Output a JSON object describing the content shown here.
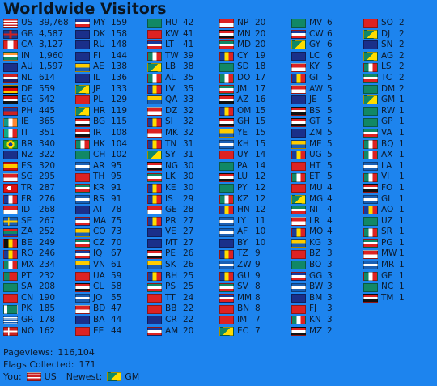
{
  "widget": {
    "title": "Worldwide Visitors",
    "pageviews_label": "Pageviews:",
    "pageviews_value": "116,104",
    "flags_label": "Flags Collected:",
    "flags_value": "171",
    "you_label": "You:",
    "you_code": "US",
    "newest_label": "Newest:",
    "newest_code": "GM"
  },
  "colors": {
    "background": "#1d84ee",
    "text": "#0d1a2b"
  },
  "columns": [
    [
      {
        "code": "US",
        "count": "39,768"
      },
      {
        "code": "GB",
        "count": "4,587"
      },
      {
        "code": "CA",
        "count": "3,127"
      },
      {
        "code": "IN",
        "count": "1,960"
      },
      {
        "code": "AU",
        "count": "1,597"
      },
      {
        "code": "NL",
        "count": "614"
      },
      {
        "code": "DE",
        "count": "559"
      },
      {
        "code": "EG",
        "count": "542"
      },
      {
        "code": "PH",
        "count": "445"
      },
      {
        "code": "IE",
        "count": "365"
      },
      {
        "code": "IT",
        "count": "351"
      },
      {
        "code": "BR",
        "count": "340"
      },
      {
        "code": "NZ",
        "count": "322"
      },
      {
        "code": "ES",
        "count": "320"
      },
      {
        "code": "SG",
        "count": "295"
      },
      {
        "code": "TR",
        "count": "287"
      },
      {
        "code": "FR",
        "count": "276"
      },
      {
        "code": "ID",
        "count": "268"
      },
      {
        "code": "SE",
        "count": "267"
      },
      {
        "code": "ZA",
        "count": "252"
      },
      {
        "code": "BE",
        "count": "249"
      },
      {
        "code": "RO",
        "count": "246"
      },
      {
        "code": "MX",
        "count": "234"
      },
      {
        "code": "PT",
        "count": "232"
      },
      {
        "code": "SA",
        "count": "208"
      },
      {
        "code": "CN",
        "count": "190"
      },
      {
        "code": "PK",
        "count": "185"
      },
      {
        "code": "GR",
        "count": "178"
      },
      {
        "code": "NO",
        "count": "162"
      }
    ],
    [
      {
        "code": "MY",
        "count": "159"
      },
      {
        "code": "DK",
        "count": "158"
      },
      {
        "code": "RU",
        "count": "148"
      },
      {
        "code": "FI",
        "count": "144"
      },
      {
        "code": "AE",
        "count": "138"
      },
      {
        "code": "IL",
        "count": "136"
      },
      {
        "code": "JP",
        "count": "133"
      },
      {
        "code": "PL",
        "count": "129"
      },
      {
        "code": "HR",
        "count": "119"
      },
      {
        "code": "BG",
        "count": "115"
      },
      {
        "code": "IR",
        "count": "108"
      },
      {
        "code": "HK",
        "count": "104"
      },
      {
        "code": "CH",
        "count": "102"
      },
      {
        "code": "AR",
        "count": "95"
      },
      {
        "code": "TH",
        "count": "95"
      },
      {
        "code": "KR",
        "count": "91"
      },
      {
        "code": "RS",
        "count": "91"
      },
      {
        "code": "AT",
        "count": "78"
      },
      {
        "code": "MA",
        "count": "75"
      },
      {
        "code": "CO",
        "count": "73"
      },
      {
        "code": "CZ",
        "count": "70"
      },
      {
        "code": "IQ",
        "count": "67"
      },
      {
        "code": "VN",
        "count": "61"
      },
      {
        "code": "UA",
        "count": "59"
      },
      {
        "code": "CL",
        "count": "58"
      },
      {
        "code": "JO",
        "count": "55"
      },
      {
        "code": "BD",
        "count": "47"
      },
      {
        "code": "BA",
        "count": "44"
      },
      {
        "code": "EE",
        "count": "44"
      }
    ],
    [
      {
        "code": "HU",
        "count": "42"
      },
      {
        "code": "KW",
        "count": "41"
      },
      {
        "code": "LT",
        "count": "41"
      },
      {
        "code": "TW",
        "count": "39"
      },
      {
        "code": "LB",
        "count": "38"
      },
      {
        "code": "AL",
        "count": "35"
      },
      {
        "code": "LV",
        "count": "35"
      },
      {
        "code": "QA",
        "count": "33"
      },
      {
        "code": "DZ",
        "count": "32"
      },
      {
        "code": "SI",
        "count": "32"
      },
      {
        "code": "MK",
        "count": "32"
      },
      {
        "code": "TN",
        "count": "31"
      },
      {
        "code": "SY",
        "count": "31"
      },
      {
        "code": "NG",
        "count": "30"
      },
      {
        "code": "LK",
        "count": "30"
      },
      {
        "code": "KE",
        "count": "30"
      },
      {
        "code": "IS",
        "count": "29"
      },
      {
        "code": "GE",
        "count": "28"
      },
      {
        "code": "PR",
        "count": "27"
      },
      {
        "code": "VE",
        "count": "27"
      },
      {
        "code": "MT",
        "count": "27"
      },
      {
        "code": "PE",
        "count": "26"
      },
      {
        "code": "SK",
        "count": "26"
      },
      {
        "code": "BH",
        "count": "25"
      },
      {
        "code": "PS",
        "count": "25"
      },
      {
        "code": "TT",
        "count": "24"
      },
      {
        "code": "BB",
        "count": "22"
      },
      {
        "code": "CR",
        "count": "22"
      },
      {
        "code": "AM",
        "count": "20"
      }
    ],
    [
      {
        "code": "NP",
        "count": "20"
      },
      {
        "code": "MN",
        "count": "20"
      },
      {
        "code": "MD",
        "count": "20"
      },
      {
        "code": "CY",
        "count": "19"
      },
      {
        "code": "SD",
        "count": "18"
      },
      {
        "code": "DO",
        "count": "17"
      },
      {
        "code": "JM",
        "count": "17"
      },
      {
        "code": "AZ",
        "count": "16"
      },
      {
        "code": "OM",
        "count": "15"
      },
      {
        "code": "GH",
        "count": "15"
      },
      {
        "code": "YE",
        "count": "15"
      },
      {
        "code": "KH",
        "count": "15"
      },
      {
        "code": "UY",
        "count": "14"
      },
      {
        "code": "PA",
        "count": "14"
      },
      {
        "code": "LU",
        "count": "12"
      },
      {
        "code": "PY",
        "count": "12"
      },
      {
        "code": "KZ",
        "count": "12"
      },
      {
        "code": "HN",
        "count": "12"
      },
      {
        "code": "LY",
        "count": "11"
      },
      {
        "code": "AF",
        "count": "10"
      },
      {
        "code": "BY",
        "count": "10"
      },
      {
        "code": "TZ",
        "count": "9"
      },
      {
        "code": "ZW",
        "count": "9"
      },
      {
        "code": "GU",
        "count": "9"
      },
      {
        "code": "SV",
        "count": "8"
      },
      {
        "code": "MM",
        "count": "8"
      },
      {
        "code": "BN",
        "count": "8"
      },
      {
        "code": "IM",
        "count": "7"
      },
      {
        "code": "EC",
        "count": "7"
      }
    ],
    [
      {
        "code": "MV",
        "count": "6"
      },
      {
        "code": "CW",
        "count": "6"
      },
      {
        "code": "GY",
        "count": "6"
      },
      {
        "code": "LC",
        "count": "6"
      },
      {
        "code": "KY",
        "count": "5"
      },
      {
        "code": "GI",
        "count": "5"
      },
      {
        "code": "AW",
        "count": "5"
      },
      {
        "code": "JE",
        "count": "5"
      },
      {
        "code": "BS",
        "count": "5"
      },
      {
        "code": "GT",
        "count": "5"
      },
      {
        "code": "ZM",
        "count": "5"
      },
      {
        "code": "ME",
        "count": "5"
      },
      {
        "code": "UG",
        "count": "5"
      },
      {
        "code": "HT",
        "count": "5"
      },
      {
        "code": "ET",
        "count": "5"
      },
      {
        "code": "MU",
        "count": "4"
      },
      {
        "code": "MG",
        "count": "4"
      },
      {
        "code": "NI",
        "count": "4"
      },
      {
        "code": "LR",
        "count": "4"
      },
      {
        "code": "MO",
        "count": "4"
      },
      {
        "code": "KG",
        "count": "3"
      },
      {
        "code": "BZ",
        "count": "3"
      },
      {
        "code": "BO",
        "count": "3"
      },
      {
        "code": "GG",
        "count": "3"
      },
      {
        "code": "BW",
        "count": "3"
      },
      {
        "code": "BM",
        "count": "3"
      },
      {
        "code": "FJ",
        "count": "3"
      },
      {
        "code": "KN",
        "count": "3"
      },
      {
        "code": "MZ",
        "count": "2"
      }
    ],
    [
      {
        "code": "SO",
        "count": "2"
      },
      {
        "code": "DJ",
        "count": "2"
      },
      {
        "code": "SN",
        "count": "2"
      },
      {
        "code": "AG",
        "count": "2"
      },
      {
        "code": "LS",
        "count": "2"
      },
      {
        "code": "TC",
        "count": "2"
      },
      {
        "code": "DM",
        "count": "2"
      },
      {
        "code": "GM",
        "count": "1"
      },
      {
        "code": "RW",
        "count": "1"
      },
      {
        "code": "GP",
        "count": "1"
      },
      {
        "code": "VA",
        "count": "1"
      },
      {
        "code": "BQ",
        "count": "1"
      },
      {
        "code": "AX",
        "count": "1"
      },
      {
        "code": "LA",
        "count": "1"
      },
      {
        "code": "VI",
        "count": "1"
      },
      {
        "code": "FO",
        "count": "1"
      },
      {
        "code": "GL",
        "count": "1"
      },
      {
        "code": "AO",
        "count": "1"
      },
      {
        "code": "UZ",
        "count": "1"
      },
      {
        "code": "SR",
        "count": "1"
      },
      {
        "code": "PG",
        "count": "1"
      },
      {
        "code": "MW",
        "count": "1"
      },
      {
        "code": "MR",
        "count": "1"
      },
      {
        "code": "GF",
        "count": "1"
      },
      {
        "code": "NC",
        "count": "1"
      },
      {
        "code": "TM",
        "count": "1"
      }
    ]
  ]
}
